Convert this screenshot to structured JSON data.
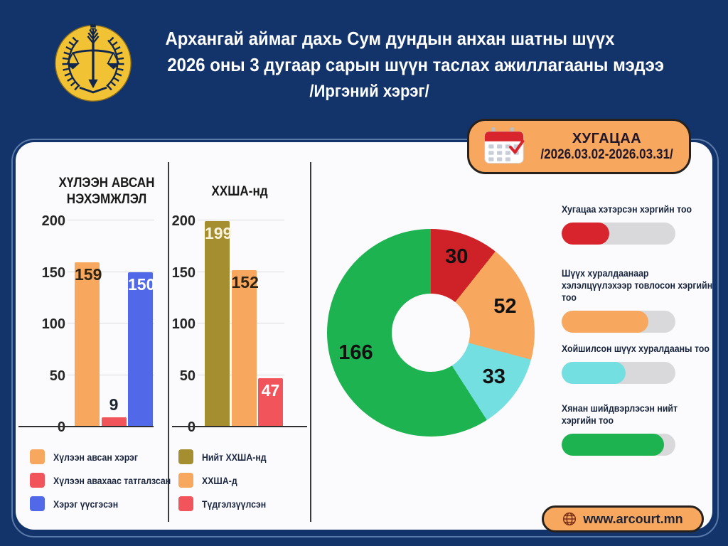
{
  "header": {
    "title_line1": "Архангай аймаг дахь Сум дундын анхан шатны шүүх",
    "title_line2": "2026 оны 3 дугаар сарын шүүн таслах ажиллагааны мэдээ",
    "title_line3": "/Иргэний хэрэг/"
  },
  "period_badge": {
    "label": "ХУГАЦАА",
    "range": "/2026.03.02-2026.03.31/"
  },
  "footer": {
    "website": "www.arcourt.mn"
  },
  "colors": {
    "background_navy": "#13336B",
    "card": "#FBFBFD",
    "accent_orange": "#F7A75E",
    "bar_red": "#F2545C",
    "bar_blue": "#5168E8",
    "bar_gold": "#A58E2F",
    "donut_red": "#CE2228",
    "donut_cyan": "#74DFE1",
    "donut_green": "#1CB350",
    "progress_track": "#D9D9DB"
  },
  "chart_data": [
    {
      "type": "bar",
      "title": "ХҮЛЭЭН АВСАН НЭХЭМЖЛЭЛ",
      "categories": [
        "Хүлээн авсан хэрэг",
        "Хүлээн авахаас татгалзсан",
        "Хэрэг үүсгэсэн"
      ],
      "values": [
        159,
        9,
        150
      ],
      "colors": [
        "#F7A75E",
        "#F2545C",
        "#5168E8"
      ],
      "value_label_colors": [
        "#2e2414",
        "#1c2430",
        "#ffffff"
      ],
      "value_label_pos": [
        "in",
        "above",
        "in"
      ],
      "ylim": [
        0,
        200
      ],
      "yticks": [
        0,
        50,
        100,
        150,
        200
      ],
      "grid": true,
      "legend_position": "bottom"
    },
    {
      "type": "bar",
      "title": "ХХША-нд",
      "categories": [
        "Нийт ХХША-нд",
        "ХХША-д",
        "Түдгэлзүүлсэн"
      ],
      "values": [
        199,
        152,
        47
      ],
      "colors": [
        "#A58E2F",
        "#F7A75E",
        "#F2545C"
      ],
      "value_label_colors": [
        "#F8F3DC",
        "#2e2414",
        "#ffffff"
      ],
      "value_label_pos": [
        "in",
        "in",
        "in"
      ],
      "ylim": [
        0,
        200
      ],
      "yticks": [
        0,
        50,
        100,
        150,
        200
      ],
      "grid": true,
      "legend_position": "bottom"
    },
    {
      "type": "pie",
      "subtype": "donut",
      "values": [
        30,
        52,
        33,
        166
      ],
      "colors": [
        "#CE2228",
        "#F7A75E",
        "#74DFE1",
        "#1CB350"
      ],
      "total": 281,
      "start_angle_deg": 0,
      "direction": "clockwise",
      "labels_shown": [
        30,
        52,
        33,
        166
      ]
    }
  ],
  "stats": [
    {
      "label": "Хугацаа хэтэрсэн хэргийн тоо",
      "color": "#D8242C",
      "fill_percent": 42
    },
    {
      "label": "Шүүх хуралдаанаар хэлэлцүүлэхээр товлосон хэргийн тоо",
      "color": "#F7A75E",
      "fill_percent": 76
    },
    {
      "label": "Хойшилсон шүүх хуралдааны тоо",
      "color": "#74DFE1",
      "fill_percent": 56
    },
    {
      "label": "Хянан шийдвэрлэсэн нийт хэргийн тоо",
      "color": "#1CB350",
      "fill_percent": 90
    }
  ]
}
